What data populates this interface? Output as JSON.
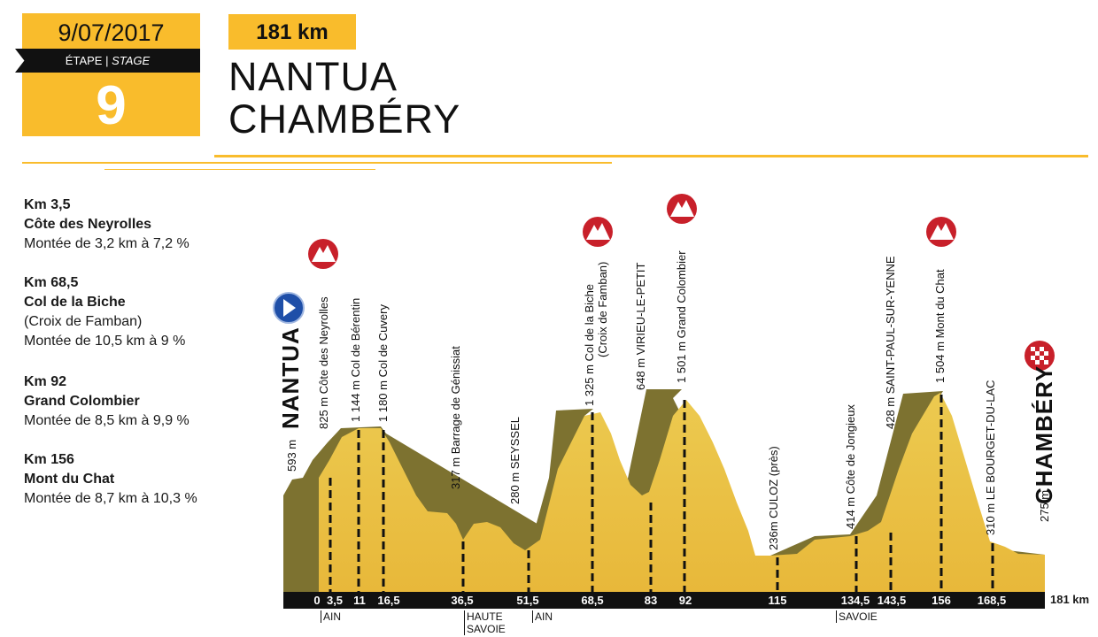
{
  "header": {
    "date": "9/07/2017",
    "etape_label": "ÉTAPE",
    "stage_label": "STAGE",
    "stage_number": "9",
    "distance": "181 km",
    "start_town": "NANTUA",
    "finish_town": "CHAMBÉRY",
    "colors": {
      "accent": "#f9bc2c",
      "band": "#111111"
    }
  },
  "climbs": [
    {
      "km": "Km 3,5",
      "name": "Côte des Neyrolles",
      "note": "",
      "detail": "Montée de 3,2 km à 7,2 %"
    },
    {
      "km": "Km 68,5",
      "name": "Col de la Biche",
      "note": "(Croix de Famban)",
      "detail": "Montée de 10,5 km à 9 %"
    },
    {
      "km": "Km 92",
      "name": "Grand Colombier",
      "note": "",
      "detail": "Montée de 8,5 km à 9,9 %"
    },
    {
      "km": "Km 156",
      "name": "Mont du Chat",
      "note": "",
      "detail": "Montée de 8,7 km à 10,3 %"
    }
  ],
  "profile": {
    "start_label": "NANTUA",
    "finish_label": "CHAMBÉRY",
    "start_alt": "593 m",
    "finish_alt": "275 m",
    "points": [
      {
        "label": "825 m   Côte des Neyrolles"
      },
      {
        "label": "1 144 m   Col de Bérentin"
      },
      {
        "label": "1 180 m   Col de Cuvery"
      },
      {
        "label": "317 m   Barrage de Génissiat"
      },
      {
        "label": "280 m   SEYSSEL"
      },
      {
        "label": "1 325 m   Col de la Biche"
      },
      {
        "label": "(Croix de Famban)"
      },
      {
        "label": "648 m   VIRIEU-LE-PETIT"
      },
      {
        "label": "1 501 m   Grand Colombier"
      },
      {
        "label": "236m   CULOZ (près)"
      },
      {
        "label": "414 m   Côte de Jongieux"
      },
      {
        "label": "428 m   SAINT-PAUL-SUR-YENNE"
      },
      {
        "label": "1 504 m   Mont du Chat"
      },
      {
        "label": "310 m   LE BOURGET-DU-LAC"
      }
    ],
    "km_markers": [
      "0",
      "3,5",
      "11",
      "16,5",
      "36,5",
      "51,5",
      "68,5",
      "83",
      "92",
      "115",
      "134,5",
      "143,5",
      "156",
      "168,5"
    ],
    "total": "181 km",
    "departments": [
      "AIN",
      "HAUTE",
      "SAVOIE",
      "AIN",
      "SAVOIE"
    ],
    "summit_icon": "mountain-summit-icon",
    "start_icon": "start-arrow-icon",
    "finish_icon": "checkered-flag-icon"
  }
}
